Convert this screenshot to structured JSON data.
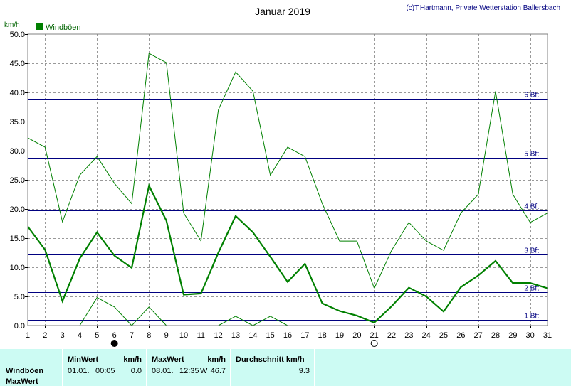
{
  "title": "Januar 2019",
  "copyright": "(c)T.Hartmann, Private Wetterstation Ballersbach",
  "unit_label": "km/h",
  "legend": {
    "label": "Windböen",
    "color": "#008000"
  },
  "chart_data": {
    "type": "line",
    "title": "Januar 2019",
    "xlabel": "",
    "ylabel": "km/h",
    "x": [
      1,
      2,
      3,
      4,
      5,
      6,
      7,
      8,
      9,
      10,
      11,
      12,
      13,
      14,
      15,
      16,
      17,
      18,
      19,
      20,
      21,
      22,
      23,
      24,
      25,
      26,
      27,
      28,
      29,
      30,
      31
    ],
    "xlim": [
      1,
      31
    ],
    "ylim": [
      0,
      50
    ],
    "y_ticks": [
      0,
      5,
      10,
      15,
      20,
      25,
      30,
      35,
      40,
      45,
      50
    ],
    "grid": true,
    "legend_position": "top-left",
    "series": [
      {
        "name": "Windböen",
        "role": "average",
        "values": [
          17.0,
          13.0,
          4.2,
          11.5,
          16.0,
          12.0,
          9.9,
          24.0,
          18.0,
          5.3,
          5.5,
          12.5,
          18.8,
          16.0,
          11.8,
          7.5,
          10.6,
          3.8,
          2.5,
          1.7,
          0.5,
          3.3,
          6.5,
          5.0,
          2.4,
          6.6,
          8.6,
          11.1,
          7.3,
          7.3,
          6.4
        ],
        "color": "#008000"
      },
      {
        "name": "",
        "role": "max",
        "values": [
          32.2,
          30.6,
          17.8,
          25.8,
          29.0,
          24.4,
          20.9,
          46.7,
          45.1,
          19.3,
          14.5,
          37.0,
          43.5,
          40.2,
          25.8,
          30.6,
          29.0,
          20.9,
          14.5,
          14.5,
          6.4,
          12.9,
          17.7,
          14.5,
          12.9,
          19.3,
          22.5,
          40.2,
          22.5,
          17.7,
          19.3
        ],
        "color": "#008000"
      },
      {
        "name": "",
        "role": "min",
        "values": [
          null,
          null,
          null,
          0.0,
          4.8,
          3.2,
          0.0,
          3.2,
          0.0,
          null,
          null,
          0.0,
          1.6,
          0.0,
          1.6,
          0.0,
          null,
          null,
          null,
          null,
          null,
          null,
          null,
          null,
          null,
          null,
          null,
          null,
          null,
          null,
          null
        ],
        "color": "#008000"
      }
    ],
    "reference_lines": [
      {
        "label": "1 Bft",
        "value": 1.0
      },
      {
        "label": "2 Bft",
        "value": 5.7
      },
      {
        "label": "3 Bft",
        "value": 12.2
      },
      {
        "label": "4 Bft",
        "value": 19.8
      },
      {
        "label": "5 Bft",
        "value": 28.8
      },
      {
        "label": "6 Bft",
        "value": 38.9
      }
    ],
    "moon_phases": [
      {
        "day": 6,
        "phase": "new",
        "color": "#000000"
      },
      {
        "day": 21,
        "phase": "full",
        "color": "#ffffff"
      }
    ]
  },
  "stats": {
    "row_label_1": "Windböen",
    "row_label_2": "MaxWert",
    "min_header": "MinWert",
    "min_unit": "km/h",
    "min_date": "01.01.",
    "min_time": "00:05",
    "min_value": "0.0",
    "max_header": "MaxWert",
    "max_unit": "km/h",
    "max_date": "08.01.",
    "max_time": "12:35",
    "max_dir": "W",
    "max_value": "46.7",
    "avg_header": "Durchschnitt km/h",
    "avg_value": "9.3"
  }
}
